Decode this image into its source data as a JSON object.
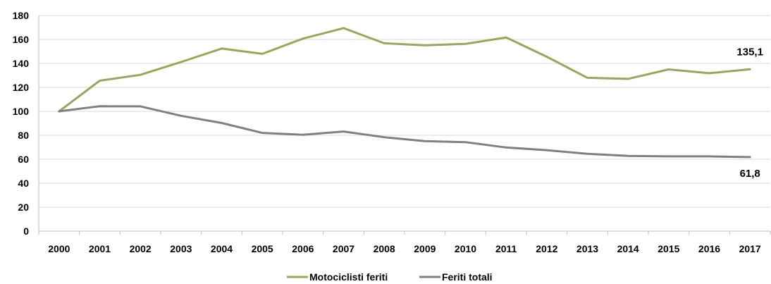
{
  "chart_data": {
    "type": "line",
    "title": "",
    "xlabel": "",
    "ylabel": "",
    "x": [
      "2000",
      "2001",
      "2002",
      "2003",
      "2004",
      "2005",
      "2006",
      "2007",
      "2008",
      "2009",
      "2010",
      "2011",
      "2012",
      "2013",
      "2014",
      "2015",
      "2016",
      "2017"
    ],
    "ylim": [
      0,
      180
    ],
    "yticks": [
      0,
      20,
      40,
      60,
      80,
      100,
      120,
      140,
      160,
      180
    ],
    "ytick_labels": [
      "0",
      "20",
      "40",
      "60",
      "80",
      "100",
      "120",
      "140",
      "160",
      "180"
    ],
    "grid": "horizontal",
    "legend_position": "bottom",
    "series": [
      {
        "name": "Motociclisti feriti",
        "color": "#9BA55B",
        "values": [
          100,
          125.6,
          130.5,
          141.2,
          152.4,
          148,
          160.7,
          169.5,
          156.8,
          155.1,
          156.3,
          161.7,
          145.6,
          128,
          127.1,
          135,
          131.8,
          135.1
        ],
        "end_label": "135,1"
      },
      {
        "name": "Feriti totali",
        "color": "#808080",
        "values": [
          100,
          104.3,
          104.2,
          96.3,
          90.3,
          82,
          80.4,
          83.2,
          78.4,
          75.1,
          74.3,
          69.8,
          67.6,
          64.5,
          62.8,
          62.4,
          62.4,
          61.8
        ],
        "end_label": "61,8"
      }
    ]
  }
}
